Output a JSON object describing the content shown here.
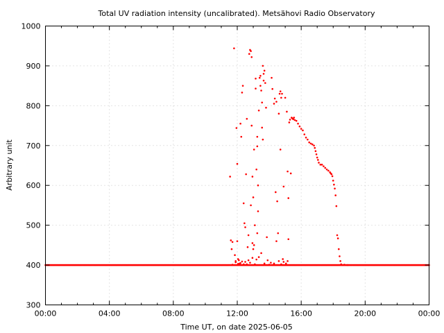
{
  "chart_data": {
    "type": "scatter",
    "title": "Total UV radiation intensity (uncalibrated). Metsähovi Radio Observatory",
    "xlabel": "Time UT, on date 2025-06-05",
    "ylabel": "Arbitrary unit",
    "x_unit": "hours UT",
    "xlim": [
      0,
      24
    ],
    "ylim": [
      300,
      1000
    ],
    "xticks": [
      0,
      4,
      8,
      12,
      16,
      20,
      24
    ],
    "xtick_labels": [
      "00:00",
      "04:00",
      "08:00",
      "12:00",
      "16:00",
      "20:00",
      "00:00"
    ],
    "yticks": [
      300,
      400,
      500,
      600,
      700,
      800,
      900,
      1000
    ],
    "ytick_labels": [
      "300",
      "400",
      "500",
      "600",
      "700",
      "800",
      "900",
      "1000"
    ],
    "minor_xticks_per_interval": 4,
    "grid": true,
    "legend": "none",
    "color": "#ff0000",
    "baseline": {
      "value": 400,
      "x_from": 0,
      "x_to": 24,
      "step": 0.05
    },
    "points": [
      [
        11.55,
        622
      ],
      [
        11.6,
        462
      ],
      [
        11.65,
        440
      ],
      [
        11.7,
        458
      ],
      [
        11.8,
        944
      ],
      [
        11.85,
        425
      ],
      [
        11.9,
        410
      ],
      [
        11.95,
        744
      ],
      [
        12.0,
        460
      ],
      [
        12.0,
        654
      ],
      [
        12.05,
        415
      ],
      [
        12.1,
        412
      ],
      [
        12.15,
        404
      ],
      [
        12.2,
        755
      ],
      [
        12.25,
        722
      ],
      [
        12.3,
        833
      ],
      [
        12.35,
        850
      ],
      [
        12.4,
        402
      ],
      [
        12.4,
        555
      ],
      [
        12.45,
        505
      ],
      [
        12.5,
        495
      ],
      [
        12.55,
        628
      ],
      [
        12.6,
        767
      ],
      [
        12.7,
        475
      ],
      [
        12.75,
        930
      ],
      [
        12.8,
        940
      ],
      [
        12.85,
        937
      ],
      [
        12.9,
        922
      ],
      [
        12.85,
        550
      ],
      [
        12.9,
        750
      ],
      [
        12.95,
        622
      ],
      [
        13.0,
        570
      ],
      [
        13.0,
        440
      ],
      [
        13.05,
        690
      ],
      [
        13.1,
        500
      ],
      [
        13.15,
        868
      ],
      [
        13.15,
        843
      ],
      [
        13.2,
        640
      ],
      [
        13.25,
        722
      ],
      [
        13.25,
        698
      ],
      [
        13.3,
        600
      ],
      [
        13.3,
        535
      ],
      [
        13.35,
        788
      ],
      [
        13.4,
        870
      ],
      [
        13.45,
        875
      ],
      [
        13.45,
        850
      ],
      [
        13.5,
        838
      ],
      [
        13.55,
        745
      ],
      [
        13.55,
        808
      ],
      [
        13.6,
        900
      ],
      [
        13.6,
        715
      ],
      [
        13.65,
        880
      ],
      [
        13.65,
        863
      ],
      [
        13.7,
        888
      ],
      [
        13.75,
        857
      ],
      [
        13.8,
        795
      ],
      [
        13.85,
        470
      ],
      [
        14.15,
        870
      ],
      [
        14.2,
        842
      ],
      [
        14.3,
        805
      ],
      [
        14.35,
        818
      ],
      [
        14.4,
        583
      ],
      [
        14.45,
        810
      ],
      [
        14.5,
        560
      ],
      [
        14.55,
        480
      ],
      [
        14.6,
        780
      ],
      [
        14.65,
        830
      ],
      [
        14.7,
        836
      ],
      [
        14.7,
        690
      ],
      [
        14.75,
        820
      ],
      [
        14.8,
        830
      ],
      [
        14.85,
        415
      ],
      [
        14.9,
        597
      ],
      [
        15.0,
        820
      ],
      [
        15.1,
        785
      ],
      [
        15.15,
        635
      ],
      [
        15.2,
        568
      ],
      [
        15.2,
        465
      ],
      [
        15.25,
        758
      ],
      [
        15.3,
        765
      ],
      [
        15.35,
        630
      ],
      [
        15.4,
        770
      ],
      [
        15.45,
        768
      ],
      [
        15.5,
        766
      ],
      [
        15.55,
        770
      ],
      [
        15.6,
        764
      ],
      [
        15.7,
        762
      ],
      [
        15.8,
        755
      ],
      [
        15.9,
        748
      ],
      [
        16.0,
        742
      ],
      [
        16.1,
        738
      ],
      [
        16.2,
        728
      ],
      [
        16.3,
        720
      ],
      [
        16.4,
        715
      ],
      [
        16.5,
        708
      ],
      [
        16.6,
        705
      ],
      [
        16.7,
        703
      ],
      [
        16.8,
        700
      ],
      [
        16.85,
        694
      ],
      [
        16.9,
        686
      ],
      [
        16.95,
        678
      ],
      [
        17.0,
        670
      ],
      [
        17.05,
        664
      ],
      [
        17.1,
        657
      ],
      [
        17.2,
        652
      ],
      [
        17.3,
        652
      ],
      [
        17.4,
        648
      ],
      [
        17.5,
        644
      ],
      [
        17.6,
        640
      ],
      [
        17.7,
        637
      ],
      [
        17.8,
        633
      ],
      [
        17.85,
        630
      ],
      [
        17.9,
        628
      ],
      [
        17.95,
        623
      ],
      [
        18.0,
        612
      ],
      [
        18.05,
        602
      ],
      [
        18.1,
        592
      ],
      [
        18.15,
        575
      ],
      [
        18.2,
        548
      ],
      [
        18.25,
        475
      ],
      [
        18.3,
        467
      ],
      [
        18.35,
        440
      ],
      [
        18.4,
        422
      ],
      [
        18.45,
        410
      ],
      [
        18.5,
        402
      ],
      [
        18.7,
        401
      ],
      [
        18.9,
        400
      ],
      [
        12.2,
        405
      ],
      [
        12.5,
        408
      ],
      [
        12.7,
        412
      ],
      [
        12.95,
        418
      ],
      [
        13.1,
        402
      ],
      [
        13.35,
        420
      ],
      [
        13.7,
        404
      ],
      [
        14.0,
        401
      ],
      [
        14.1,
        406
      ],
      [
        14.6,
        410
      ],
      [
        14.9,
        408
      ],
      [
        15.05,
        404
      ],
      [
        11.7,
        401
      ],
      [
        11.9,
        407
      ],
      [
        12.05,
        403
      ],
      [
        12.3,
        409
      ],
      [
        12.6,
        402
      ],
      [
        12.8,
        406
      ],
      [
        13.2,
        414
      ],
      [
        13.5,
        430
      ],
      [
        13.9,
        412
      ],
      [
        14.3,
        404
      ],
      [
        14.75,
        402
      ],
      [
        15.15,
        410
      ],
      [
        13.05,
        450
      ],
      [
        13.25,
        480
      ],
      [
        12.95,
        455
      ],
      [
        14.45,
        460
      ],
      [
        12.65,
        445
      ]
    ]
  }
}
